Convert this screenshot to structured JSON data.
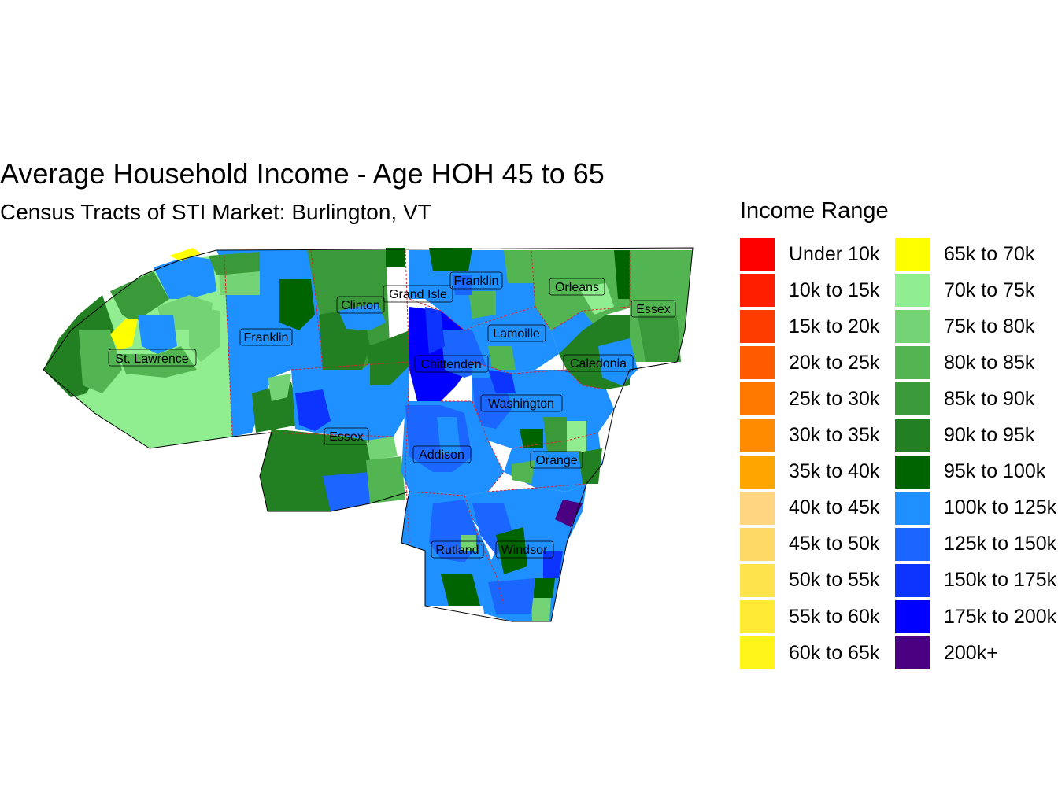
{
  "title": "Average Household Income - Age HOH 45 to 65",
  "subtitle": "Census Tracts of STI Market: Burlington, VT",
  "legend": {
    "title": "Income Range",
    "items": [
      {
        "label": "Under 10k",
        "color": "#FF0000"
      },
      {
        "label": "10k to 15k",
        "color": "#FF1E00"
      },
      {
        "label": "15k to 20k",
        "color": "#FF3C00"
      },
      {
        "label": "20k to 25k",
        "color": "#FF5A00"
      },
      {
        "label": "25k to 30k",
        "color": "#FF7800"
      },
      {
        "label": "30k to 35k",
        "color": "#FF8C00"
      },
      {
        "label": "35k to 40k",
        "color": "#FFA500"
      },
      {
        "label": "40k to 45k",
        "color": "#FFD580"
      },
      {
        "label": "45k to 50k",
        "color": "#FFD966"
      },
      {
        "label": "50k to 55k",
        "color": "#FFE34D"
      },
      {
        "label": "55k to 60k",
        "color": "#FFEB33"
      },
      {
        "label": "60k to 65k",
        "color": "#FFF51A"
      },
      {
        "label": "65k to 70k",
        "color": "#FFFF00"
      },
      {
        "label": "70k to 75k",
        "color": "#90EE90"
      },
      {
        "label": "75k to 80k",
        "color": "#74D374"
      },
      {
        "label": "80k to 85k",
        "color": "#52B552"
      },
      {
        "label": "85k to 90k",
        "color": "#3A9A3A"
      },
      {
        "label": "90k to 95k",
        "color": "#228022"
      },
      {
        "label": "95k to 100k",
        "color": "#006400"
      },
      {
        "label": "100k to 125k",
        "color": "#1E90FF"
      },
      {
        "label": "125k to 150k",
        "color": "#1A66FF"
      },
      {
        "label": "150k to 175k",
        "color": "#0D33FF"
      },
      {
        "label": "175k to 200k",
        "color": "#0000FF"
      },
      {
        "label": "200k+",
        "color": "#4B0082"
      }
    ]
  },
  "counties": [
    {
      "name": "St. Lawrence"
    },
    {
      "name": "Franklin"
    },
    {
      "name": "Clinton"
    },
    {
      "name": "Grand Isle"
    },
    {
      "name": "Franklin"
    },
    {
      "name": "Orleans"
    },
    {
      "name": "Essex"
    },
    {
      "name": "Lamoille"
    },
    {
      "name": "Chittenden"
    },
    {
      "name": "Caledonia"
    },
    {
      "name": "Washington"
    },
    {
      "name": "Essex"
    },
    {
      "name": "Addison"
    },
    {
      "name": "Orange"
    },
    {
      "name": "Rutland"
    },
    {
      "name": "Windsor"
    }
  ]
}
